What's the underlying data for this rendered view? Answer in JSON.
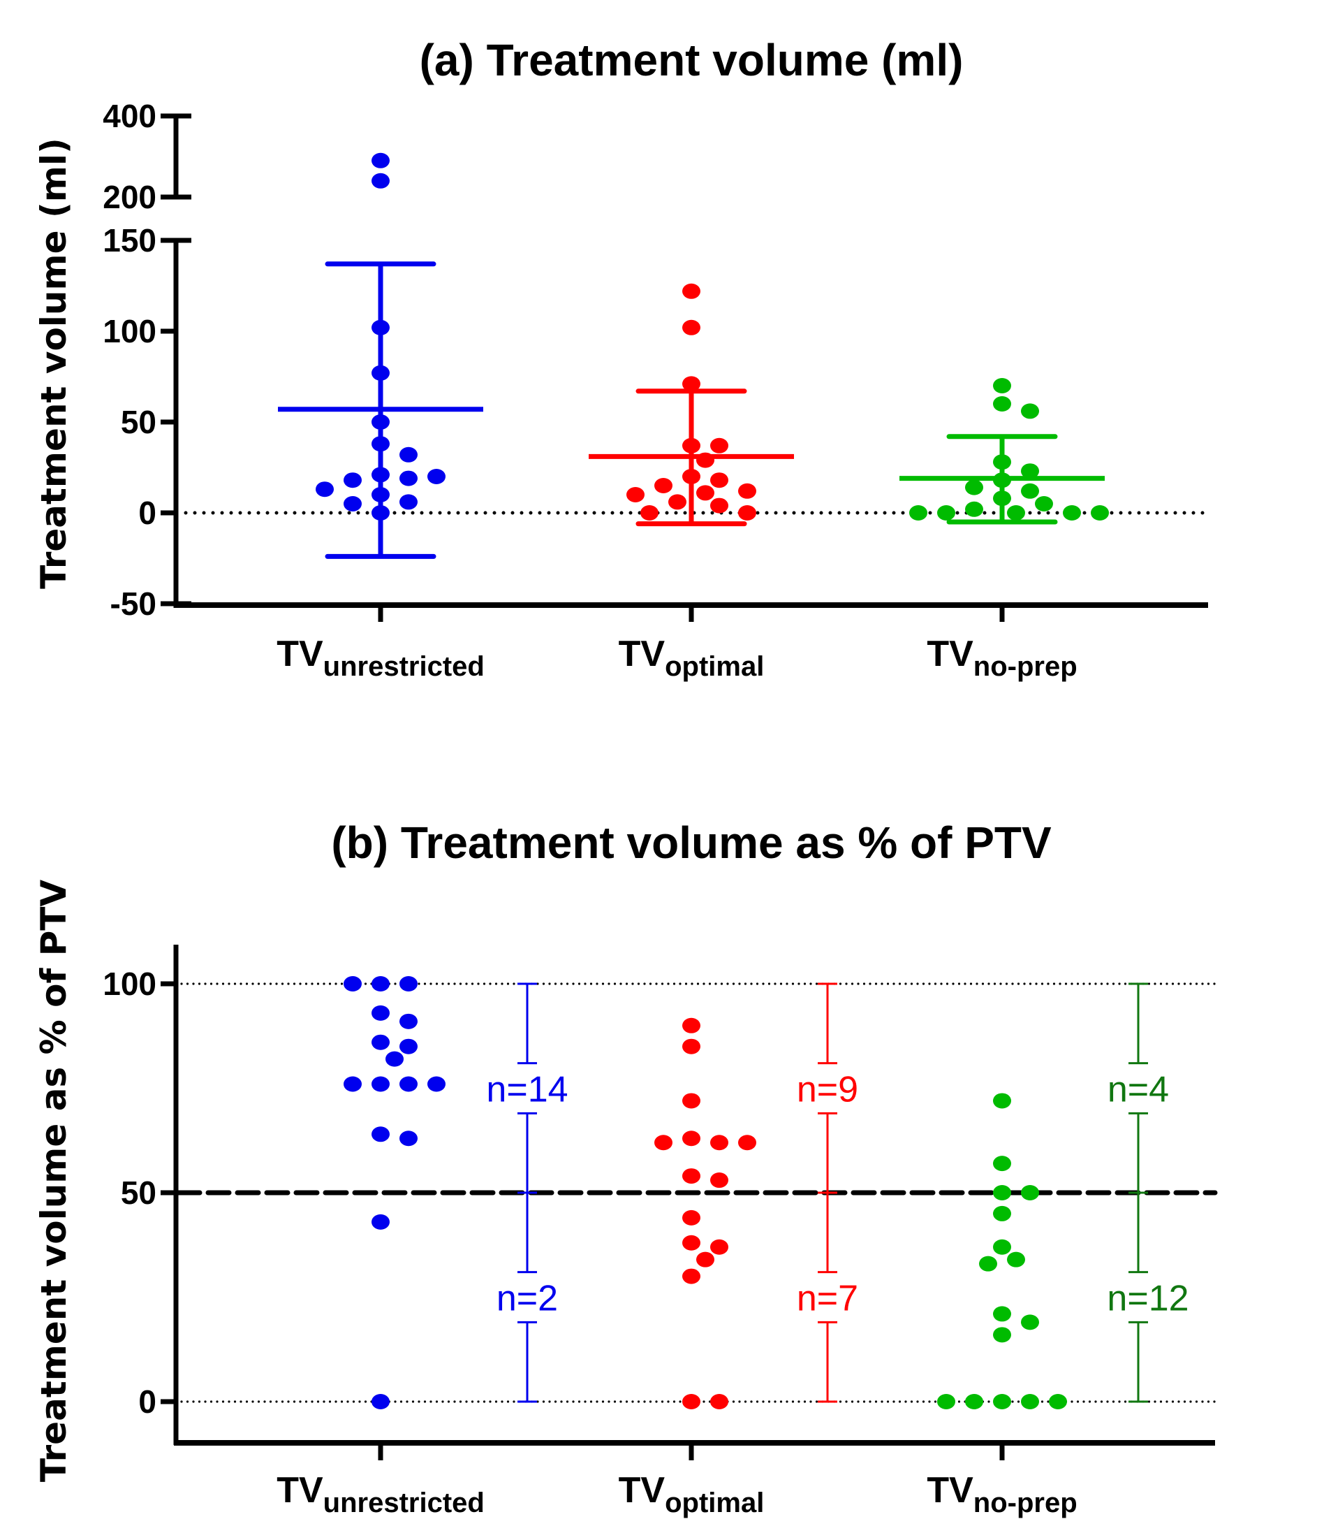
{
  "chart_data": [
    {
      "type": "scatter",
      "title": "(a) Treatment volume (ml)",
      "ylabel": "Treatment volume (ml)",
      "xlabel": "",
      "y_axis_segments": [
        {
          "range": [
            -50,
            150
          ],
          "ticks": [
            -50,
            0,
            50,
            100,
            150
          ]
        },
        {
          "range": [
            200,
            400
          ],
          "ticks": [
            200,
            400
          ]
        }
      ],
      "ylim": [
        -50,
        400
      ],
      "reference_lines": [
        {
          "y": 0,
          "style": "dotted"
        }
      ],
      "categories": [
        {
          "main": "TV",
          "sub": "unrestricted"
        },
        {
          "main": "TV",
          "sub": "optimal"
        },
        {
          "main": "TV",
          "sub": "no-prep"
        }
      ],
      "series": [
        {
          "name": "TV unrestricted",
          "color": "#0000ee",
          "values": [
            290,
            240,
            102,
            77,
            50,
            38,
            32,
            21,
            19,
            18,
            20,
            13,
            10,
            6,
            5,
            0
          ],
          "mean": 57,
          "sd_upper": 137,
          "sd_lower": -24
        },
        {
          "name": "TV optimal",
          "color": "#ff0000",
          "values": [
            122,
            102,
            71,
            37,
            37,
            29,
            20,
            18,
            15,
            12,
            11,
            10,
            6,
            4,
            0,
            0
          ],
          "mean": 31,
          "sd_upper": 67,
          "sd_lower": -6
        },
        {
          "name": "TV no-prep",
          "color": "#00bb00",
          "values": [
            70,
            60,
            56,
            28,
            23,
            18,
            14,
            12,
            8,
            5,
            2,
            0,
            0,
            0,
            0,
            0
          ],
          "mean": 19,
          "sd_upper": 42,
          "sd_lower": -5
        }
      ]
    },
    {
      "type": "scatter",
      "title": "(b) Treatment volume as % of PTV",
      "ylabel": "Treatment volume as % of PTV",
      "xlabel": "",
      "ylim": [
        -10,
        110
      ],
      "yticks": [
        0,
        50,
        100
      ],
      "reference_lines": [
        {
          "y": 100,
          "style": "dotted"
        },
        {
          "y": 50,
          "style": "dashed"
        },
        {
          "y": 0,
          "style": "dotted"
        }
      ],
      "categories": [
        {
          "main": "TV",
          "sub": "unrestricted"
        },
        {
          "main": "TV",
          "sub": "optimal"
        },
        {
          "main": "TV",
          "sub": "no-prep"
        }
      ],
      "series": [
        {
          "name": "TV unrestricted",
          "color": "#0000ee",
          "label_color": "#0000ee",
          "values": [
            100,
            100,
            100,
            93,
            91,
            86,
            85,
            82,
            76,
            76,
            76,
            76,
            64,
            63,
            43,
            0
          ],
          "count_above_50": "n=14",
          "count_below_50": "n=2"
        },
        {
          "name": "TV optimal",
          "color": "#ff0000",
          "label_color": "#ff0000",
          "values": [
            90,
            85,
            72,
            63,
            62,
            62,
            62,
            54,
            53,
            44,
            38,
            37,
            34,
            30,
            0,
            0
          ],
          "count_above_50": "n=9",
          "count_below_50": "n=7"
        },
        {
          "name": "TV no-prep",
          "color": "#00bb00",
          "label_color": "#117711",
          "values": [
            72,
            57,
            50,
            50,
            45,
            37,
            34,
            33,
            21,
            19,
            16,
            0,
            0,
            0,
            0,
            0
          ],
          "count_above_50": "n=4",
          "count_below_50": "n=12"
        }
      ]
    }
  ]
}
